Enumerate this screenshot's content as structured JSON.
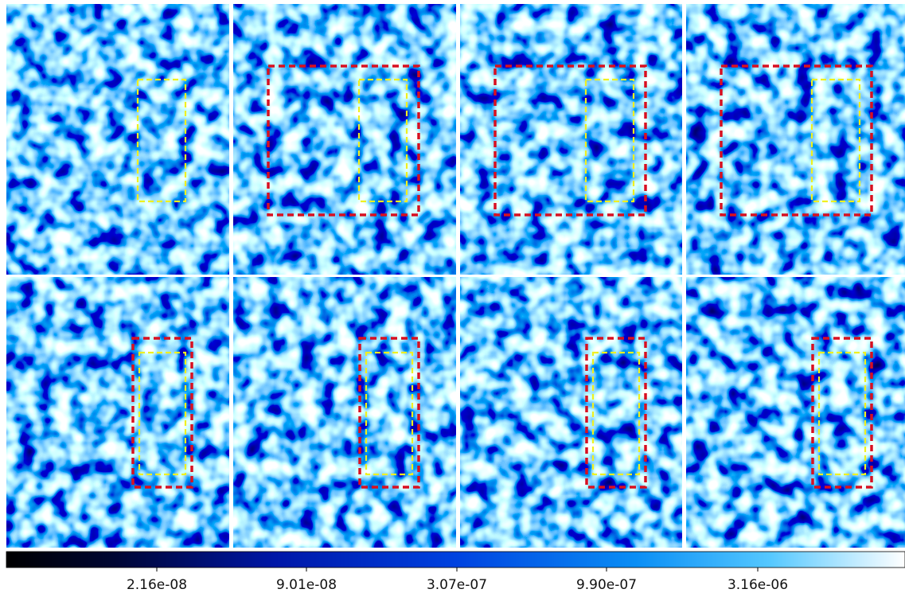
{
  "colorbar": {
    "tick_labels": [
      "2.16e-08",
      "9.01e-08",
      "3.07e-07",
      "9.90e-07",
      "3.16e-06"
    ]
  }
}
